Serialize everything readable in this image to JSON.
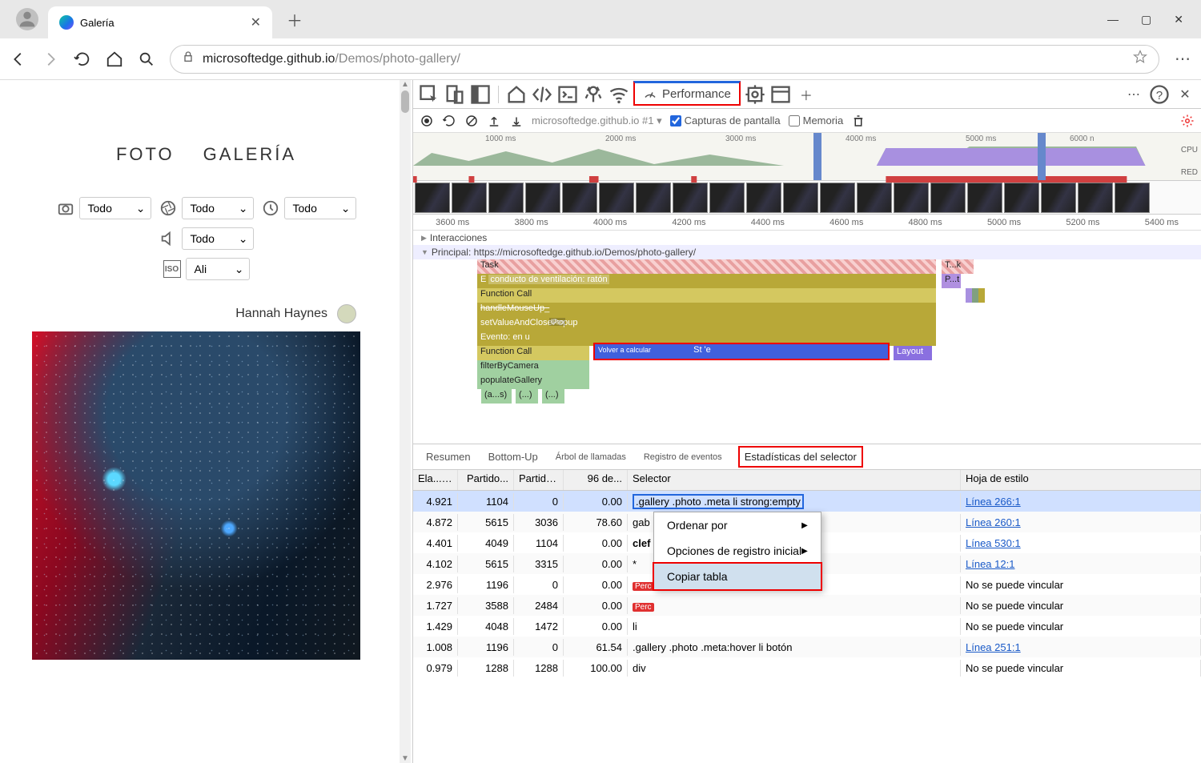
{
  "window": {
    "tab_title": "Galería",
    "minimize": "—",
    "maximize": "▢",
    "close": "✕"
  },
  "address": {
    "host": "microsoftedge.github.io",
    "path": "/Demos/photo-gallery/"
  },
  "gallery": {
    "heading_foto": "FOTO",
    "heading_galeria": "GALERÍA",
    "filter_all": "Todo",
    "filter_ali": "Ali",
    "author": "Hannah Haynes"
  },
  "devtools": {
    "perf_label": "Performance",
    "recording_name": "microsoftedge.github.io #1",
    "chk_screenshots": "Capturas de pantalla",
    "chk_memory": "Memoria",
    "overview_ticks": [
      "1000 ms",
      "2000 ms",
      "3000 ms",
      "4000 ms",
      "5000 ms",
      "6000 n"
    ],
    "cpu_label": "CPU",
    "red_label": "RED",
    "ruler_ticks": [
      "3600 ms",
      "3800 ms",
      "4000 ms",
      "4200 ms",
      "4400 ms",
      "4600 ms",
      "4800 ms",
      "5000 ms",
      "5200 ms",
      "5400 ms"
    ],
    "track_interactions": "Interacciones",
    "track_main": "Principal: https://microsoftedge.github.io/Demos/photo-gallery/",
    "flame": {
      "task": "Task",
      "task2": "T...k",
      "e": "E",
      "conducto": "conducto de ventilación: ratón",
      "pt": "P...t",
      "fcall": "Function Call",
      "handle": "handleMouseUp_",
      "setval": "setValueAndClosePopup",
      "uso": "Uso",
      "evento": "Evento: en u",
      "fcall2": "Function Call",
      "recalc": "Volver a calcular",
      "ste": "St 'e",
      "layout": "Layout",
      "filter": "filterByCamera",
      "populate": "populateGallery",
      "as": "(a...s)",
      "dots1": "(...)",
      "dots2": "(...)"
    },
    "tabs": {
      "resumen": "Resumen",
      "bottomup": "Bottom-Up",
      "arbol": "Árbol de llamadas",
      "registro": "Registro de eventos",
      "stats": "Estadísticas del selector"
    },
    "columns": {
      "elapsed": "Ela...",
      "partido1": "Partido...",
      "partido2": "Partido...",
      "p96": "96 de...",
      "selector": "Selector",
      "hoja": "Hoja de estilo"
    },
    "rows": [
      {
        "e": "4.921",
        "p1": "1104",
        "p2": "0",
        "p3": "0.00",
        "sel": ".gallery .photo .meta li strong:empty",
        "hoja": "Línea 266:1",
        "link": true,
        "selected": true,
        "boxed": true
      },
      {
        "e": "4.872",
        "p1": "5615",
        "p2": "3036",
        "p3": "78.60",
        "sel": "gab",
        "hoja": "Línea 260:1",
        "link": true
      },
      {
        "e": "4.401",
        "p1": "4049",
        "p2": "1104",
        "p3": "0.00",
        "sel": "clef",
        "hoja": "Línea 530:1",
        "link": true,
        "bold": true
      },
      {
        "e": "4.102",
        "p1": "5615",
        "p2": "3315",
        "p3": "0.00",
        "sel": "*",
        "hoja": "Línea 12:1",
        "link": true
      },
      {
        "e": "2.976",
        "p1": "1196",
        "p2": "0",
        "p3": "0.00",
        "sel": "Perc",
        "hoja": "No se puede vincular",
        "badge": true
      },
      {
        "e": "1.727",
        "p1": "3588",
        "p2": "2484",
        "p3": "0.00",
        "sel": "Perc",
        "hoja": "No se puede vincular",
        "badge": true
      },
      {
        "e": "1.429",
        "p1": "4048",
        "p2": "1472",
        "p3": "0.00",
        "sel": "li",
        "hoja": "No se puede vincular"
      },
      {
        "e": "1.008",
        "p1": "1196",
        "p2": "0",
        "p3": "61.54",
        "sel": ".gallery .photo .meta:hover li botón",
        "hoja": "Línea 251:1",
        "link": true
      },
      {
        "e": "0.979",
        "p1": "1288",
        "p2": "1288",
        "p3": "100.00",
        "sel": "div",
        "hoja": "No se puede vincular"
      }
    ],
    "context_menu": {
      "ordenar": "Ordenar por",
      "opciones": "Opciones de registro inicial",
      "copiar": "Copiar tabla"
    }
  }
}
